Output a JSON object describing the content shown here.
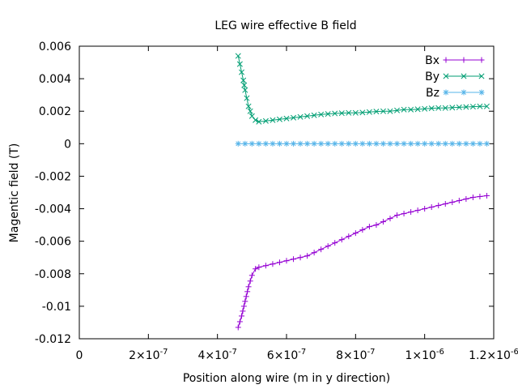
{
  "chart_data": {
    "type": "line",
    "title": "LEG wire effective B field",
    "xlabel": "Position along wire (m in y direction)",
    "ylabel": "Magentic field (T)",
    "xlim": [
      0,
      1.2e-06
    ],
    "ylim": [
      -0.012,
      0.006
    ],
    "x_ticks": [
      {
        "value": 0,
        "label": "0"
      },
      {
        "value": 2e-07,
        "label": "2×10",
        "exp": "-7"
      },
      {
        "value": 4e-07,
        "label": "4×10",
        "exp": "-7"
      },
      {
        "value": 6e-07,
        "label": "6×10",
        "exp": "-7"
      },
      {
        "value": 8e-07,
        "label": "8×10",
        "exp": "-7"
      },
      {
        "value": 1e-06,
        "label": "1×10",
        "exp": "-6"
      },
      {
        "value": 1.2e-06,
        "label": "1.2×10",
        "exp": "-6"
      }
    ],
    "y_ticks": [
      {
        "value": 0.006,
        "label": "0.006"
      },
      {
        "value": 0.004,
        "label": "0.004"
      },
      {
        "value": 0.002,
        "label": "0.002"
      },
      {
        "value": 0,
        "label": "0"
      },
      {
        "value": -0.002,
        "label": "-0.002"
      },
      {
        "value": -0.004,
        "label": "-0.004"
      },
      {
        "value": -0.006,
        "label": "-0.006"
      },
      {
        "value": -0.008,
        "label": "-0.008"
      },
      {
        "value": -0.01,
        "label": "-0.01"
      },
      {
        "value": -0.012,
        "label": "-0.012"
      }
    ],
    "grid": false,
    "legend_position": "top-right",
    "series": [
      {
        "name": "Bx",
        "color": "#9400d3",
        "marker": "plus",
        "x": [
          4.6e-07,
          4.7e-07,
          4.8e-07,
          4.9e-07,
          5e-07,
          5.1e-07,
          5.2e-07,
          5.4e-07,
          5.6e-07,
          5.8e-07,
          6e-07,
          6.2e-07,
          6.4e-07,
          6.6e-07,
          6.8e-07,
          7e-07,
          7.2e-07,
          7.4e-07,
          7.6e-07,
          7.8e-07,
          8e-07,
          8.2e-07,
          8.4e-07,
          8.6e-07,
          8.8e-07,
          9e-07,
          9.2e-07,
          9.4e-07,
          9.6e-07,
          9.8e-07,
          1e-06,
          1.02e-06,
          1.04e-06,
          1.06e-06,
          1.08e-06,
          1.1e-06,
          1.12e-06,
          1.14e-06,
          1.16e-06,
          1.18e-06
        ],
        "y": [
          -0.0113,
          -0.0106,
          -0.0097,
          -0.0088,
          -0.0081,
          -0.0077,
          -0.0076,
          -0.0075,
          -0.0074,
          -0.0073,
          -0.0072,
          -0.0071,
          -0.007,
          -0.0069,
          -0.0067,
          -0.0065,
          -0.0063,
          -0.0061,
          -0.0059,
          -0.0057,
          -0.0055,
          -0.0053,
          -0.0051,
          -0.005,
          -0.0048,
          -0.0046,
          -0.0044,
          -0.0043,
          -0.0042,
          -0.0041,
          -0.004,
          -0.0039,
          -0.0038,
          -0.0037,
          -0.0036,
          -0.0035,
          -0.0034,
          -0.0033,
          -0.00325,
          -0.0032
        ]
      },
      {
        "name": "By",
        "color": "#009e73",
        "marker": "cross",
        "x": [
          4.6e-07,
          4.65e-07,
          4.7e-07,
          4.75e-07,
          4.8e-07,
          4.85e-07,
          4.9e-07,
          5e-07,
          5.1e-07,
          5.2e-07,
          5.4e-07,
          5.6e-07,
          5.8e-07,
          6e-07,
          6.2e-07,
          6.4e-07,
          6.6e-07,
          6.8e-07,
          7e-07,
          7.2e-07,
          7.4e-07,
          7.6e-07,
          7.8e-07,
          8e-07,
          8.2e-07,
          8.4e-07,
          8.6e-07,
          8.8e-07,
          9e-07,
          9.2e-07,
          9.4e-07,
          9.6e-07,
          9.8e-07,
          1e-06,
          1.02e-06,
          1.04e-06,
          1.06e-06,
          1.08e-06,
          1.1e-06,
          1.12e-06,
          1.14e-06,
          1.16e-06,
          1.18e-06
        ],
        "y": [
          0.0054,
          0.0049,
          0.0044,
          0.0039,
          0.0033,
          0.0028,
          0.0023,
          0.0017,
          0.00145,
          0.00135,
          0.0014,
          0.00145,
          0.0015,
          0.00155,
          0.0016,
          0.00165,
          0.0017,
          0.00175,
          0.0018,
          0.00183,
          0.00186,
          0.00188,
          0.0019,
          0.0019,
          0.00192,
          0.00195,
          0.00198,
          0.002,
          0.002,
          0.00205,
          0.0021,
          0.0021,
          0.00212,
          0.00215,
          0.00218,
          0.0022,
          0.0022,
          0.00222,
          0.00224,
          0.00226,
          0.00228,
          0.0023,
          0.0023
        ]
      },
      {
        "name": "Bz",
        "color": "#56b4e9",
        "marker": "star",
        "x": [
          4.6e-07,
          4.8e-07,
          5e-07,
          5.2e-07,
          5.4e-07,
          5.6e-07,
          5.8e-07,
          6e-07,
          6.2e-07,
          6.4e-07,
          6.6e-07,
          6.8e-07,
          7e-07,
          7.2e-07,
          7.4e-07,
          7.6e-07,
          7.8e-07,
          8e-07,
          8.2e-07,
          8.4e-07,
          8.6e-07,
          8.8e-07,
          9e-07,
          9.2e-07,
          9.4e-07,
          9.6e-07,
          9.8e-07,
          1e-06,
          1.02e-06,
          1.04e-06,
          1.06e-06,
          1.08e-06,
          1.1e-06,
          1.12e-06,
          1.14e-06,
          1.16e-06,
          1.18e-06
        ],
        "y": [
          0,
          0,
          0,
          0,
          0,
          0,
          0,
          0,
          0,
          0,
          0,
          0,
          0,
          0,
          0,
          0,
          0,
          0,
          0,
          0,
          0,
          0,
          0,
          0,
          0,
          0,
          0,
          0,
          0,
          0,
          0,
          0,
          0,
          0,
          0,
          0,
          0
        ]
      }
    ]
  }
}
